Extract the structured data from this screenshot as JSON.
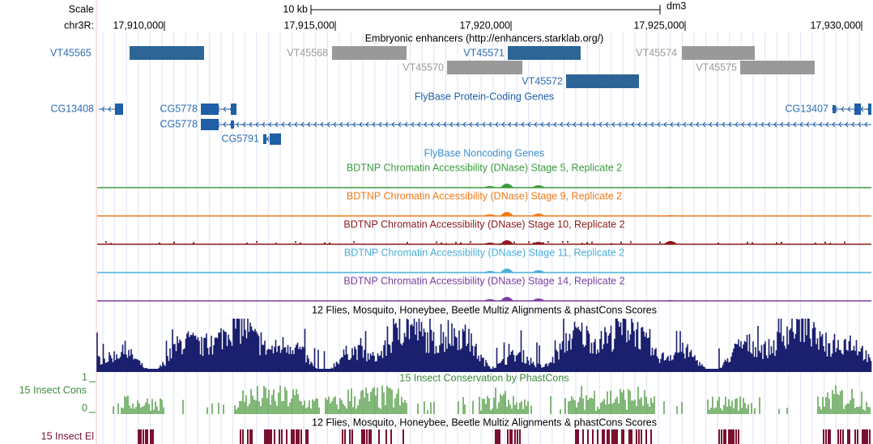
{
  "scale": {
    "label": "Scale",
    "size": "10 kb",
    "assembly": "dm3"
  },
  "position": {
    "chrom": "chr3R:",
    "ticks": [
      "17,910,000",
      "17,915,000",
      "17,920,000",
      "17,925,000",
      "17,930,000"
    ]
  },
  "enhancers": {
    "title": "Embryonic enhancers (http://enhancers.starklab.org/)",
    "items": [
      "VT45565",
      "VT45568",
      "VT45571",
      "VT45574",
      "VT45570",
      "VT45575",
      "VT45572"
    ]
  },
  "genes": {
    "title": "FlyBase Protein-Coding Genes",
    "items": [
      "CG13408",
      "CG5778",
      "CG5778",
      "CG13407",
      "CG5791"
    ]
  },
  "noncoding": {
    "title": "FlyBase Noncoding Genes"
  },
  "dnase": {
    "titles": [
      "BDTNP Chromatin Accessibility (DNase) Stage 5, Replicate 2",
      "BDTNP Chromatin Accessibility (DNase) Stage 9, Replicate 2",
      "BDTNP Chromatin Accessibility (DNase) Stage 10, Replicate 2",
      "BDTNP Chromatin Accessibility (DNase) Stage 11, Replicate 2",
      "BDTNP Chromatin Accessibility (DNase) Stage 14, Replicate 2"
    ]
  },
  "multiz": {
    "title": "12 Flies, Mosquito, Honeybee, Beetle Multiz Alignments & phastCons Scores"
  },
  "cons": {
    "label": "15 Insect Cons",
    "title": "15 Insect Conservation by PhastCons",
    "max": "1",
    "min": "0"
  },
  "elements": {
    "label": "15 Insect El",
    "title": "12 Flies, Mosquito, Honeybee, Beetle Multiz Alignments & phastCons Scores"
  }
}
